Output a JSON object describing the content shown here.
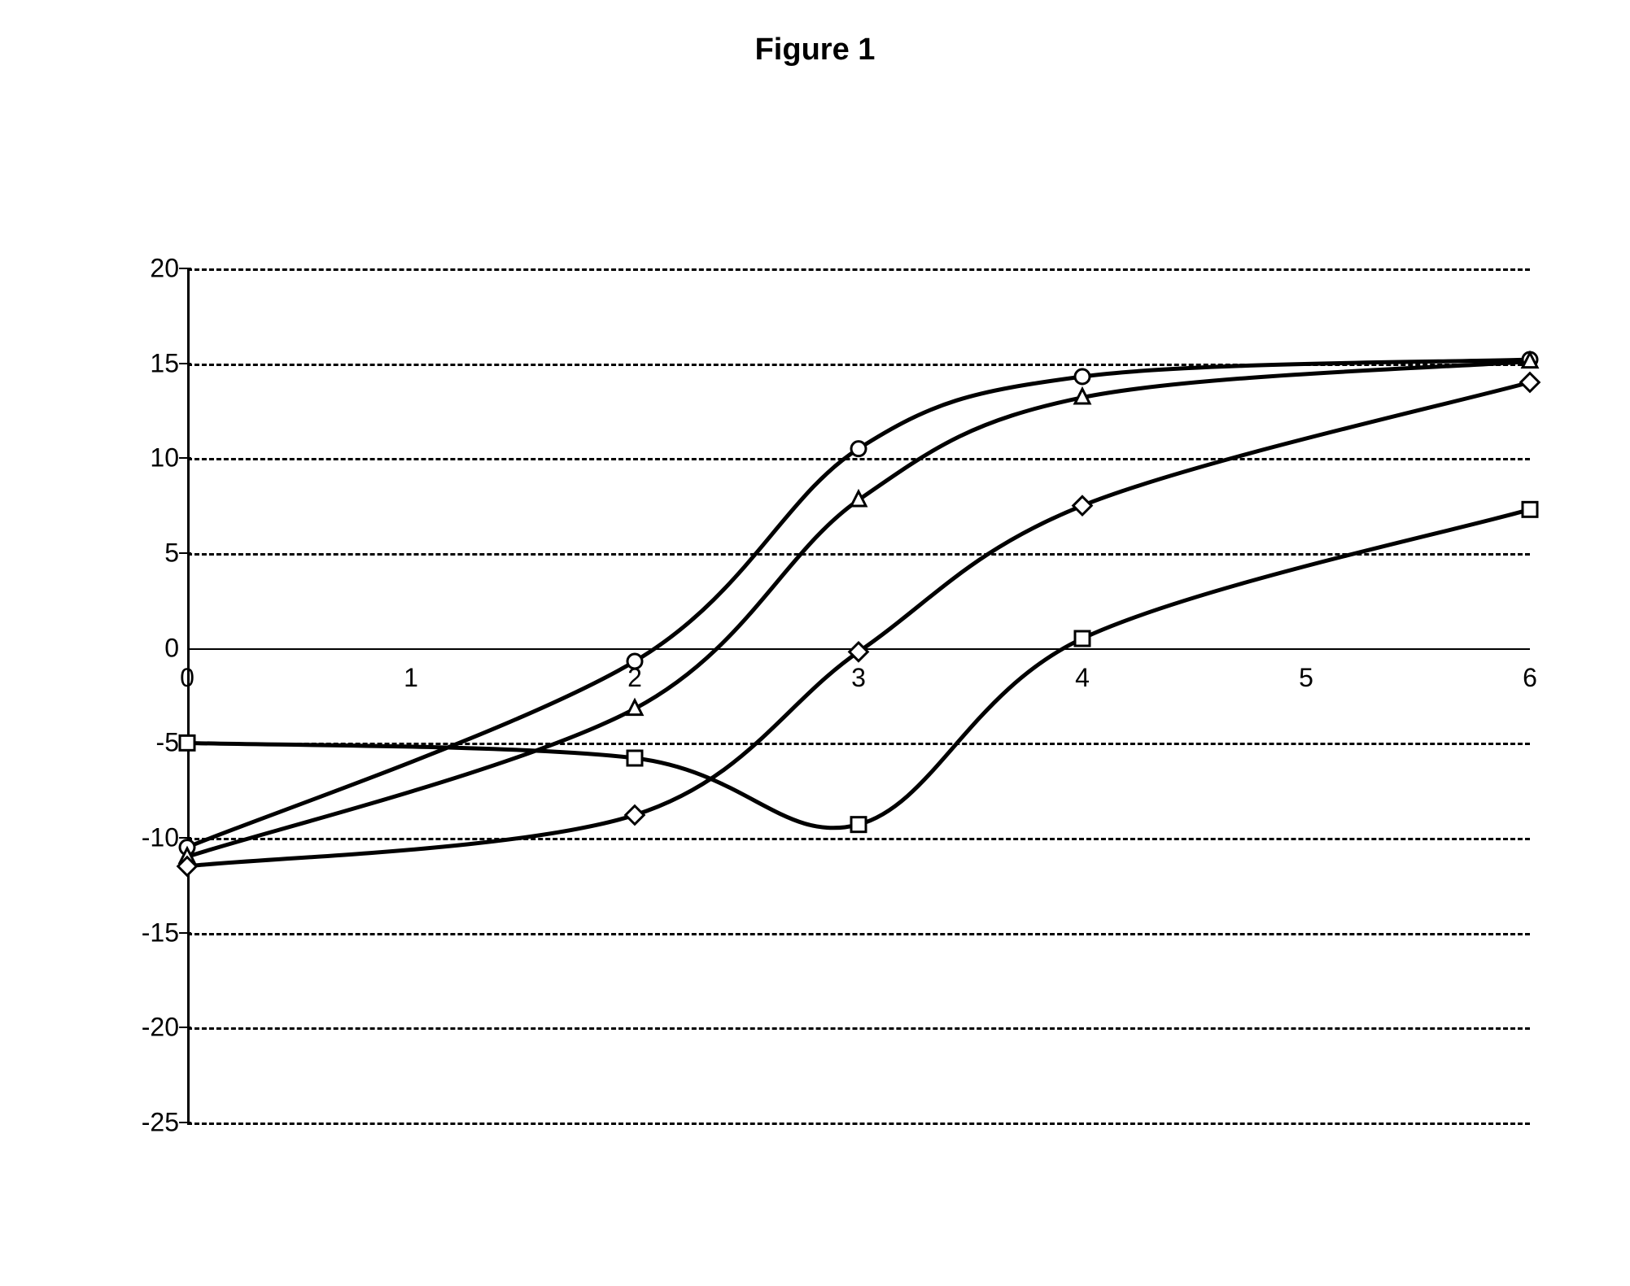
{
  "title": "Figure 1",
  "chart": {
    "type": "line",
    "background_color": "#ffffff",
    "line_color": "#000000",
    "line_width": 5,
    "grid_color": "#000000",
    "grid_style": "dashed",
    "xlim": [
      0,
      6
    ],
    "ylim": [
      -25,
      20
    ],
    "ytick_step": 5,
    "xtick_step": 1,
    "x_ticks": [
      0,
      1,
      2,
      3,
      4,
      5,
      6
    ],
    "y_ticks": [
      20,
      15,
      10,
      5,
      0,
      -5,
      -10,
      -15,
      -20,
      -25
    ],
    "x_labels": [
      "0",
      "1",
      "2",
      "3",
      "4",
      "5",
      "6"
    ],
    "y_labels": [
      "20",
      "15",
      "10",
      "5",
      "0",
      "-5",
      "-10",
      "-15",
      "-20",
      "-25"
    ],
    "title_fontsize": 38,
    "label_fontsize": 32,
    "marker_size": 18,
    "marker_fill": "#ffffff",
    "marker_stroke": "#000000",
    "series": [
      {
        "name": "circle",
        "marker": "circle",
        "x": [
          0,
          2,
          3,
          4,
          6
        ],
        "y": [
          -10.5,
          -0.7,
          10.5,
          14.3,
          15.2
        ]
      },
      {
        "name": "triangle",
        "marker": "triangle",
        "x": [
          0,
          2,
          3,
          4,
          6
        ],
        "y": [
          -11,
          -3.2,
          7.8,
          13.2,
          15.1
        ]
      },
      {
        "name": "diamond",
        "marker": "diamond",
        "x": [
          0,
          2,
          3,
          4,
          6
        ],
        "y": [
          -11.5,
          -8.8,
          -0.2,
          7.5,
          14.0
        ]
      },
      {
        "name": "square",
        "marker": "square",
        "x": [
          0,
          2,
          3,
          4,
          6
        ],
        "y": [
          -5,
          -5.8,
          -9.3,
          0.5,
          7.3
        ]
      }
    ]
  }
}
